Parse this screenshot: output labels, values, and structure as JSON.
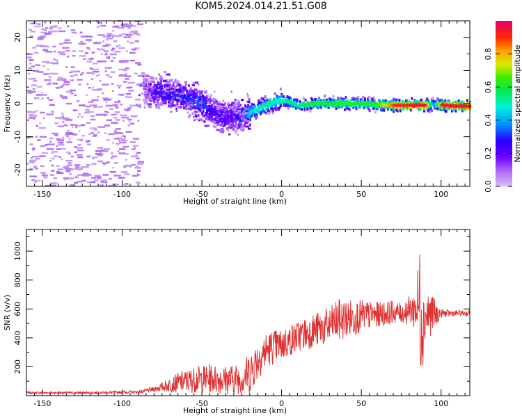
{
  "figure": {
    "title": "KOM5.2024.014.21.51.G08"
  },
  "colors": {
    "snr_line": "#e03232",
    "axes": "#000000",
    "background": "#ffffff"
  },
  "chart_data": [
    {
      "type": "heatmap",
      "title": "KOM5.2024.014.21.51.G08",
      "xlabel": "Height of straight line (km)",
      "ylabel": "Frequency (Hz)",
      "xlim": [
        -160,
        118
      ],
      "ylim": [
        -25,
        25
      ],
      "x_ticks": [
        -150,
        -100,
        -50,
        0,
        50,
        100
      ],
      "y_ticks": [
        -20,
        -10,
        0,
        10,
        20
      ],
      "colorbar": {
        "label": "Normalized spectral amplitude",
        "ticks": [
          0.0,
          0.2,
          0.4,
          0.6,
          0.8
        ],
        "range": [
          0,
          1
        ],
        "colormap": "rainbow"
      },
      "ridge": {
        "description": "dominant Doppler frequency trace",
        "x": [
          -87,
          -80,
          -70,
          -60,
          -50,
          -45,
          -40,
          -35,
          -30,
          -25,
          -20,
          -15,
          -10,
          -5,
          0,
          5,
          10,
          15,
          20,
          30,
          40,
          50,
          60,
          70,
          80,
          90,
          95,
          100,
          110,
          118
        ],
        "y": [
          4.5,
          4,
          3,
          1.5,
          0,
          -2,
          -3.5,
          -4,
          -4.2,
          -3.5,
          -2.5,
          -1.5,
          -0.5,
          0.5,
          1,
          0.5,
          -0.5,
          -0.3,
          0,
          0,
          0,
          0,
          -0.3,
          -0.5,
          -0.5,
          -0.5,
          -0.3,
          -0.5,
          -0.7,
          -0.8
        ],
        "amplitude": [
          0.1,
          0.25,
          0.3,
          0.3,
          0.35,
          0.25,
          0.25,
          0.25,
          0.2,
          0.35,
          0.45,
          0.5,
          0.55,
          0.5,
          0.5,
          0.55,
          0.5,
          0.6,
          0.6,
          0.6,
          0.65,
          0.6,
          0.65,
          0.9,
          0.95,
          0.95,
          0.35,
          0.95,
          0.95,
          0.95
        ]
      },
      "noise_region": {
        "x_range": [
          -160,
          -90
        ],
        "amplitude": 0.05
      }
    },
    {
      "type": "line",
      "xlabel": "Height of straight line (km)",
      "ylabel": "SNR (v/v)",
      "xlim": [
        -160,
        118
      ],
      "ylim": [
        0,
        1150
      ],
      "x_ticks": [
        -150,
        -100,
        -50,
        0,
        50,
        100
      ],
      "y_ticks": [
        200,
        400,
        600,
        800,
        1000
      ],
      "series": [
        {
          "envelope_x": [
            -160,
            -120,
            -90,
            -82,
            -75,
            -65,
            -55,
            -45,
            -35,
            -25,
            -20,
            -15,
            -10,
            -5,
            0,
            10,
            20,
            30,
            35,
            40,
            45,
            50,
            60,
            70,
            75,
            80,
            84,
            86,
            87,
            88,
            89,
            90,
            94,
            97,
            100,
            110,
            118
          ],
          "mean": [
            20,
            20,
            25,
            40,
            60,
            90,
            110,
            120,
            110,
            120,
            160,
            250,
            310,
            340,
            350,
            410,
            450,
            480,
            520,
            530,
            540,
            550,
            560,
            580,
            570,
            590,
            600,
            620,
            640,
            550,
            500,
            560,
            570,
            560,
            570,
            570,
            570
          ],
          "amplitude": [
            8,
            8,
            10,
            15,
            30,
            70,
            90,
            100,
            100,
            110,
            150,
            140,
            130,
            120,
            110,
            110,
            120,
            130,
            150,
            140,
            130,
            110,
            90,
            80,
            70,
            100,
            150,
            350,
            500,
            400,
            250,
            200,
            150,
            80,
            30,
            20,
            20
          ]
        }
      ]
    }
  ]
}
